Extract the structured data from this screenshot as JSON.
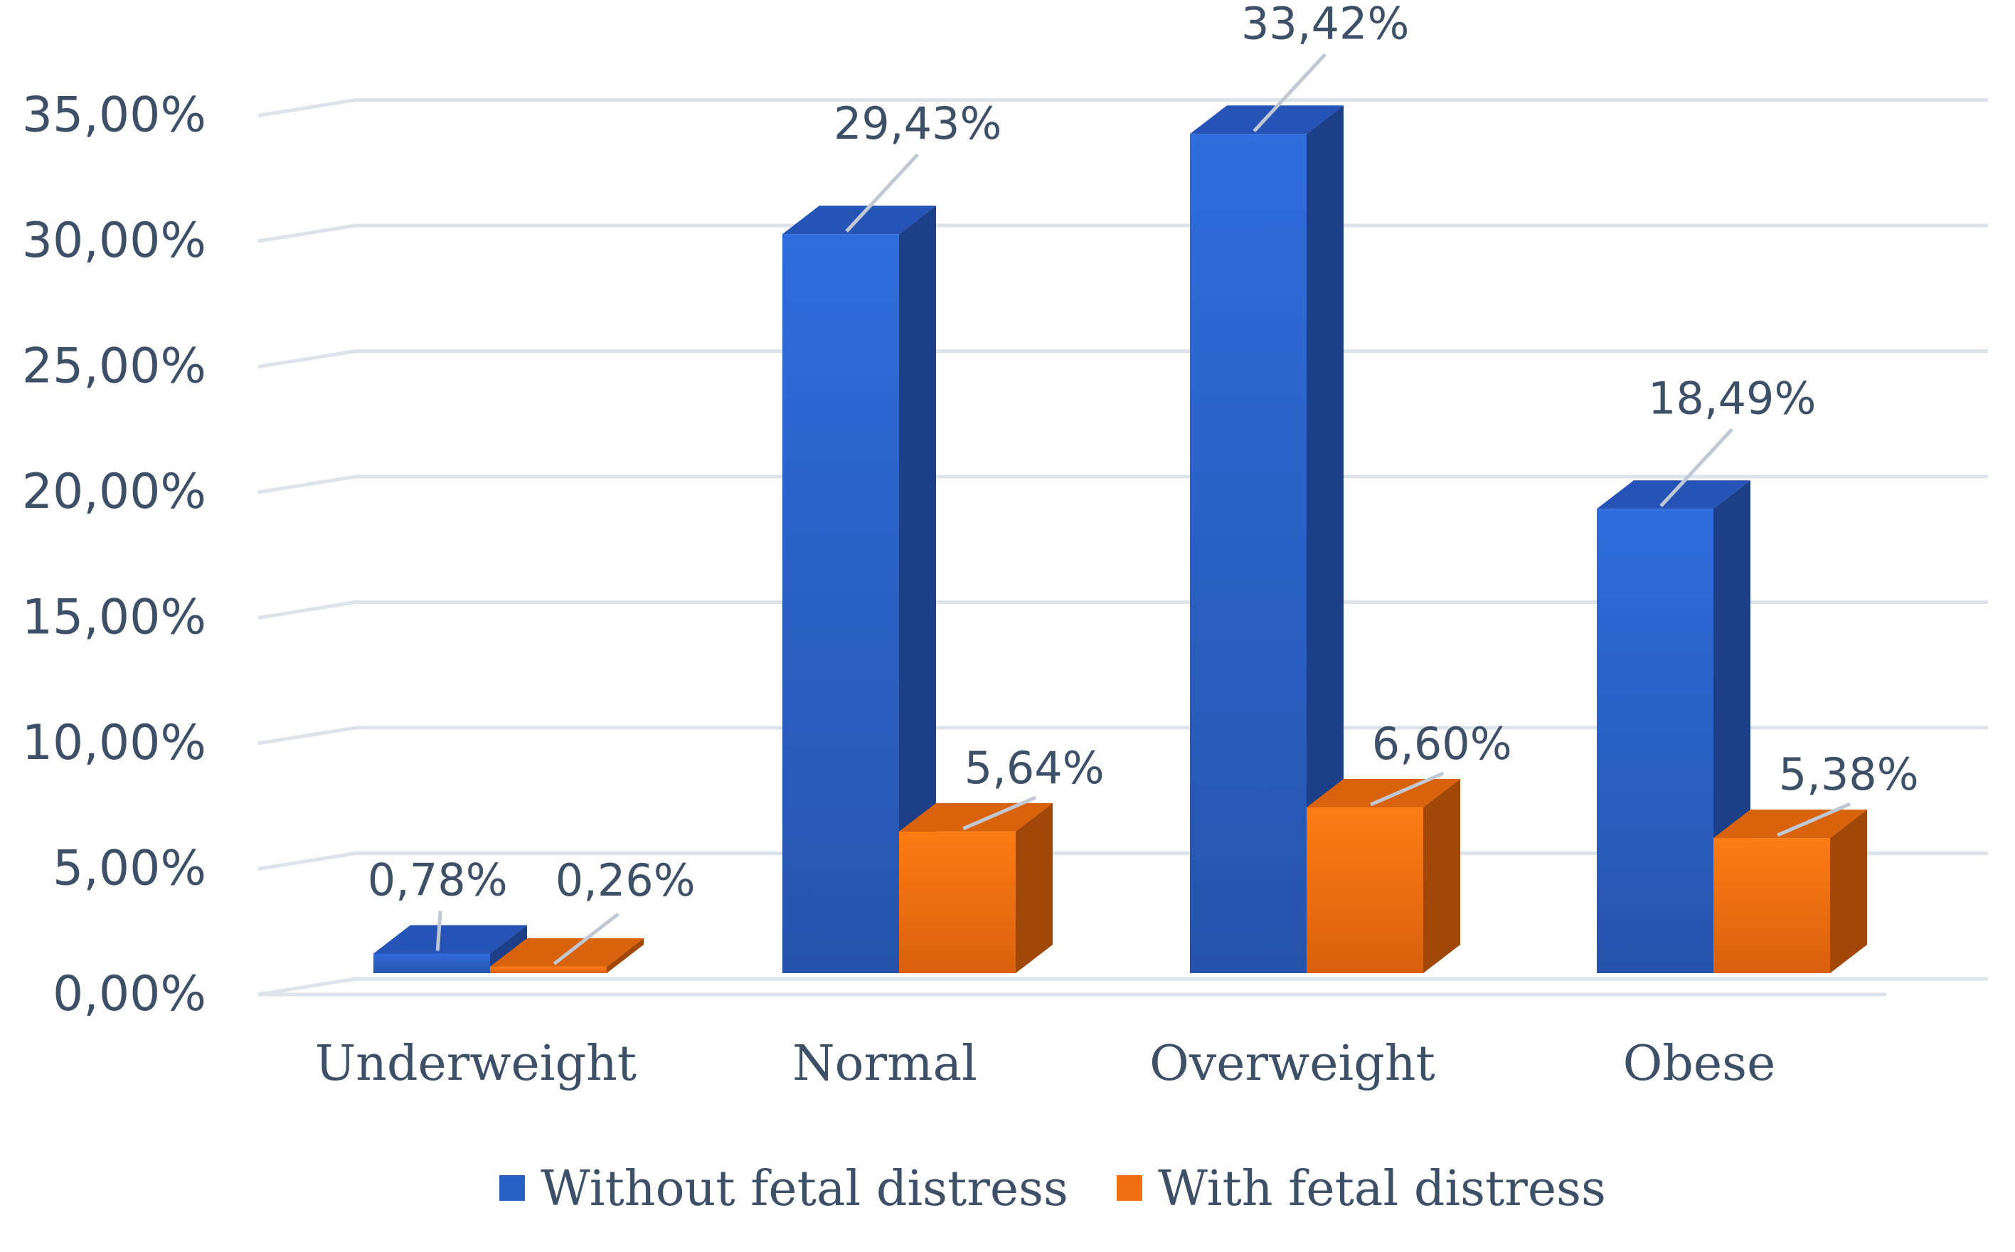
{
  "chart_data": {
    "type": "bar",
    "title": "",
    "xlabel": "",
    "ylabel": "",
    "categories": [
      "Underweight",
      "Normal",
      "Overweight",
      "Obese"
    ],
    "series": [
      {
        "name": "Without fetal distress",
        "values": [
          0.78,
          29.43,
          33.42,
          18.49
        ],
        "labels": [
          "0,78%",
          "29,43%",
          "33,42%",
          "18,49%"
        ],
        "color": "#2e67d4"
      },
      {
        "name": "With fetal distress",
        "values": [
          0.26,
          5.64,
          6.6,
          5.38
        ],
        "labels": [
          "0,26%",
          "5,64%",
          "6,60%",
          "5,38%"
        ],
        "color": "#f77818"
      }
    ],
    "ylim": [
      0,
      35
    ],
    "yticks": [
      0,
      5,
      10,
      15,
      20,
      25,
      30,
      35
    ],
    "ytick_labels": [
      "0,00%",
      "5,00%",
      "10,00%",
      "15,00%",
      "20,00%",
      "25,00%",
      "30,00%",
      "35,00%"
    ],
    "grid": true,
    "legend": "bottom",
    "style": "3d-column"
  }
}
